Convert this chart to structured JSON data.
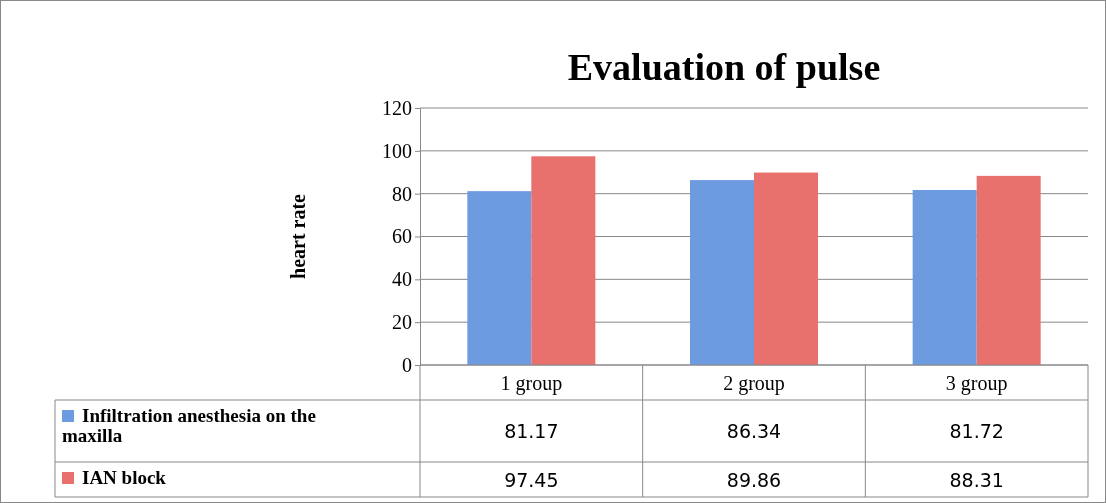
{
  "chart_data": {
    "type": "bar",
    "title": "Evaluation of pulse",
    "ylabel": "heart rate",
    "categories": [
      "1 group",
      "2 group",
      "3 group"
    ],
    "series": [
      {
        "name": "Infiltration anesthesia on the maxilla",
        "color": "#6c9be0",
        "values": [
          81.17,
          86.34,
          81.72
        ]
      },
      {
        "name": "IAN block",
        "color": "#e8716e",
        "values": [
          97.45,
          89.86,
          88.31
        ]
      }
    ],
    "ylim": [
      0,
      120
    ],
    "yticks": [
      0,
      20,
      40,
      60,
      80,
      100,
      120
    ],
    "grid": "y",
    "legend": "bottom",
    "data_labels": true
  }
}
